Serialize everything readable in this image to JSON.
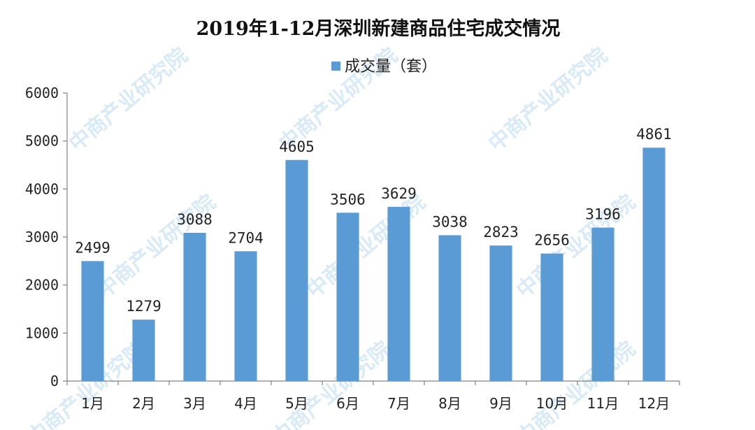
{
  "chart_data": {
    "type": "bar",
    "title": "2019年1-12月深圳新建商品住宅成交情况",
    "categories": [
      "1月",
      "2月",
      "3月",
      "4月",
      "5月",
      "6月",
      "7月",
      "8月",
      "9月",
      "10月",
      "11月",
      "12月"
    ],
    "series": [
      {
        "name": "成交量（套）",
        "color": "#5b9bd5",
        "values": [
          2499,
          1279,
          3088,
          2704,
          4605,
          3506,
          3629,
          3038,
          2823,
          2656,
          3196,
          4861
        ]
      }
    ],
    "xlabel": "",
    "ylabel": "",
    "ylim": [
      0,
      6000
    ],
    "yticks": [
      0,
      1000,
      2000,
      3000,
      4000,
      5000,
      6000
    ],
    "grid": false,
    "legend": "top-center"
  },
  "watermark": "中商产业研究院"
}
